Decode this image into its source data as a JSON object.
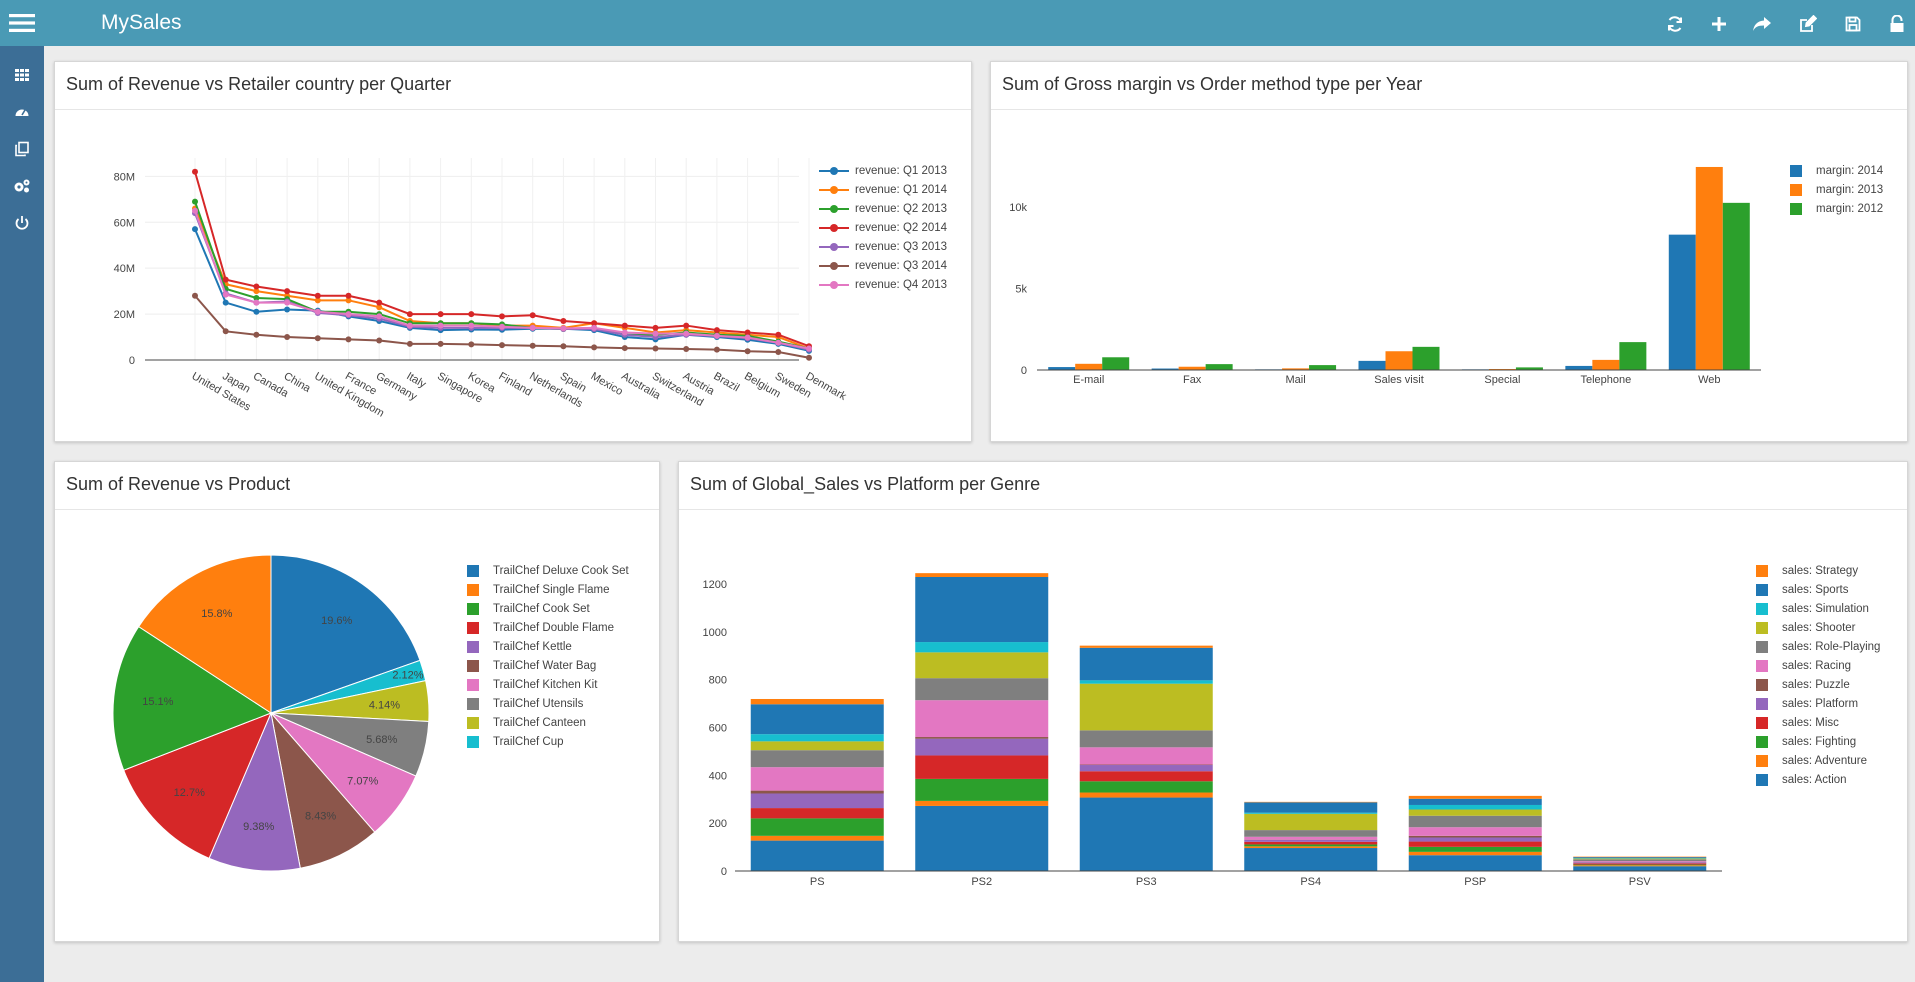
{
  "app": {
    "title": "MySales"
  },
  "toolbar": [
    {
      "icon": "refresh-icon"
    },
    {
      "icon": "plus-icon"
    },
    {
      "icon": "share-icon"
    },
    {
      "icon": "edit-icon"
    },
    {
      "icon": "save-icon"
    },
    {
      "icon": "unlock-icon"
    }
  ],
  "sidebar": [
    {
      "icon": "grid-icon"
    },
    {
      "icon": "dashboard-icon"
    },
    {
      "icon": "copy-icon"
    },
    {
      "icon": "settings-icon"
    },
    {
      "icon": "power-icon"
    }
  ],
  "colors": {
    "blue": "#1f77b4",
    "orange": "#ff7f0e",
    "green": "#2ca02c",
    "red": "#d62728",
    "purple": "#9467bd",
    "brown": "#8c564b",
    "pink": "#e377c2",
    "gray": "#7f7f7f",
    "olive": "#bcbd22",
    "cyan": "#17becf",
    "topbar": "#4a9ab5",
    "sidebar": "#3c6e96"
  },
  "panels": {
    "revenue_country": {
      "title": "Sum of Revenue vs Retailer country per Quarter"
    },
    "gross_margin": {
      "title": "Sum of Gross margin vs Order method type per Year"
    },
    "revenue_product": {
      "title": "Sum of Revenue vs Product"
    },
    "global_sales": {
      "title": "Sum of Global_Sales vs Platform per Genre"
    }
  },
  "chart_data": [
    {
      "id": "revenue_country",
      "type": "line",
      "x": [
        "United States",
        "Japan",
        "Canada",
        "China",
        "United Kingdom",
        "France",
        "Germany",
        "Italy",
        "Singapore",
        "Korea",
        "Finland",
        "Netherlands",
        "Spain",
        "Mexico",
        "Australia",
        "Switzerland",
        "Austria",
        "Brazil",
        "Belgium",
        "Sweden",
        "Denmark"
      ],
      "y_ticks": [
        {
          "v": 0,
          "label": "0"
        },
        {
          "v": 20,
          "label": "20M"
        },
        {
          "v": 40,
          "label": "40M"
        },
        {
          "v": 60,
          "label": "60M"
        },
        {
          "v": 80,
          "label": "80M"
        }
      ],
      "ylim": [
        0,
        88
      ],
      "grid": true,
      "legend": "right",
      "series": [
        {
          "name": "revenue: Q1 2013",
          "color": "#1f77b4",
          "values": [
            57,
            25,
            21,
            22,
            21.5,
            19,
            17,
            14,
            13,
            13.3,
            13.2,
            13.6,
            13.6,
            13,
            10,
            9,
            11,
            10,
            8.8,
            7,
            4
          ]
        },
        {
          "name": "revenue: Q1 2014",
          "color": "#ff7f0e",
          "values": [
            66,
            33,
            30,
            28,
            26,
            26,
            23,
            17,
            16,
            16,
            15,
            15,
            14,
            16,
            14,
            12,
            13,
            12,
            11,
            10,
            5
          ]
        },
        {
          "name": "revenue: Q2 2013",
          "color": "#2ca02c",
          "values": [
            69,
            31,
            27,
            26.5,
            21,
            21,
            20,
            16,
            16,
            16,
            15.5,
            14,
            13.5,
            14,
            11,
            11,
            12,
            11,
            10.5,
            8,
            5
          ]
        },
        {
          "name": "revenue: Q2 2014",
          "color": "#d62728",
          "values": [
            82,
            35,
            32,
            30,
            28,
            28,
            25,
            20,
            20,
            20,
            19,
            19.5,
            17,
            16,
            15,
            14,
            15,
            13,
            12,
            11,
            6
          ]
        },
        {
          "name": "revenue: Q3 2013",
          "color": "#9467bd",
          "values": [
            64,
            29,
            25,
            25.5,
            20.5,
            19.5,
            18,
            14.5,
            14,
            14,
            14,
            14,
            13.5,
            13.5,
            11,
            10,
            11,
            10.5,
            9.5,
            7.5,
            4.5
          ]
        },
        {
          "name": "revenue: Q3 2014",
          "color": "#8c564b",
          "values": [
            28,
            12.5,
            11,
            10,
            9.5,
            9,
            8.5,
            7,
            7,
            6.8,
            6.5,
            6.2,
            6,
            5.5,
            5.2,
            5,
            4.8,
            4.5,
            3.8,
            3.5,
            1
          ]
        },
        {
          "name": "revenue: Q4 2013",
          "color": "#e377c2",
          "values": [
            65,
            28.5,
            25,
            25,
            21,
            20,
            19,
            15,
            15,
            15,
            14.5,
            14,
            13.8,
            14,
            12,
            11.5,
            11.5,
            10.5,
            9.8,
            7.5,
            5
          ]
        }
      ]
    },
    {
      "id": "gross_margin",
      "type": "bar",
      "categories": [
        "E-mail",
        "Fax",
        "Mail",
        "Sales visit",
        "Special",
        "Telephone",
        "Web"
      ],
      "y_ticks": [
        {
          "v": 0,
          "label": "0"
        },
        {
          "v": 5000,
          "label": "5k"
        },
        {
          "v": 10000,
          "label": "10k"
        }
      ],
      "ylim": [
        0,
        13000
      ],
      "legend": "right",
      "series": [
        {
          "name": "margin: 2014",
          "color": "#1f77b4",
          "values": [
            180,
            90,
            40,
            560,
            40,
            250,
            8300
          ]
        },
        {
          "name": "margin: 2013",
          "color": "#ff7f0e",
          "values": [
            380,
            200,
            100,
            1150,
            60,
            620,
            12450
          ]
        },
        {
          "name": "margin: 2012",
          "color": "#2ca02c",
          "values": [
            780,
            360,
            300,
            1420,
            160,
            1710,
            10250
          ]
        }
      ]
    },
    {
      "id": "revenue_product",
      "type": "pie",
      "legend": "right",
      "slices": [
        {
          "label": "TrailChef Deluxe Cook Set",
          "value": 19.6,
          "text": "19.6%",
          "color": "#1f77b4"
        },
        {
          "label": "TrailChef Cup",
          "value": 2.12,
          "text": "2.12%",
          "color": "#17becf"
        },
        {
          "label": "TrailChef Canteen",
          "value": 4.14,
          "text": "4.14%",
          "color": "#bcbd22"
        },
        {
          "label": "TrailChef Utensils",
          "value": 5.68,
          "text": "5.68%",
          "color": "#7f7f7f"
        },
        {
          "label": "TrailChef Kitchen Kit",
          "value": 7.07,
          "text": "7.07%",
          "color": "#e377c2"
        },
        {
          "label": "TrailChef Water Bag",
          "value": 8.43,
          "text": "8.43%",
          "color": "#8c564b"
        },
        {
          "label": "TrailChef Kettle",
          "value": 9.38,
          "text": "9.38%",
          "color": "#9467bd"
        },
        {
          "label": "TrailChef Double Flame",
          "value": 12.7,
          "text": "12.7%",
          "color": "#d62728"
        },
        {
          "label": "TrailChef Cook Set",
          "value": 15.1,
          "text": "15.1%",
          "color": "#2ca02c"
        },
        {
          "label": "TrailChef Single Flame",
          "value": 15.8,
          "text": "15.8%",
          "color": "#ff7f0e"
        }
      ],
      "legend_order": [
        "TrailChef Deluxe Cook Set",
        "TrailChef Single Flame",
        "TrailChef Cook Set",
        "TrailChef Double Flame",
        "TrailChef Kettle",
        "TrailChef Water Bag",
        "TrailChef Kitchen Kit",
        "TrailChef Utensils",
        "TrailChef Canteen",
        "TrailChef Cup"
      ]
    },
    {
      "id": "global_sales",
      "type": "bar",
      "stacked": true,
      "categories": [
        "PS",
        "PS2",
        "PS3",
        "PS4",
        "PSP",
        "PSV"
      ],
      "y_ticks": [
        {
          "v": 0,
          "label": "0"
        },
        {
          "v": 200,
          "label": "200"
        },
        {
          "v": 400,
          "label": "400"
        },
        {
          "v": 600,
          "label": "600"
        },
        {
          "v": 800,
          "label": "800"
        },
        {
          "v": 1000,
          "label": "1000"
        },
        {
          "v": 1200,
          "label": "1200"
        }
      ],
      "ylim": [
        0,
        1300
      ],
      "legend": "right",
      "series": [
        {
          "name": "sales: Action",
          "color": "#1f77b4",
          "values": [
            127,
            272,
            307,
            96,
            66,
            20
          ]
        },
        {
          "name": "sales: Adventure",
          "color": "#ff7f0e",
          "values": [
            20,
            21,
            21,
            7,
            14,
            4
          ]
        },
        {
          "name": "sales: Fighting",
          "color": "#2ca02c",
          "values": [
            73,
            92,
            47,
            8,
            21,
            3
          ]
        },
        {
          "name": "sales: Misc",
          "color": "#d62728",
          "values": [
            43,
            98,
            42,
            11,
            22,
            5
          ]
        },
        {
          "name": "sales: Platform",
          "color": "#9467bd",
          "values": [
            61,
            70,
            26,
            8,
            17,
            4
          ]
        },
        {
          "name": "sales: Puzzle",
          "color": "#8c564b",
          "values": [
            12,
            7,
            2,
            1,
            7,
            1
          ]
        },
        {
          "name": "sales: Racing",
          "color": "#e377c2",
          "values": [
            98,
            154,
            72,
            12,
            36,
            4
          ]
        },
        {
          "name": "sales: Role-Playing",
          "color": "#7f7f7f",
          "values": [
            71,
            92,
            71,
            28,
            48,
            8
          ]
        },
        {
          "name": "sales: Shooter",
          "color": "#bcbd22",
          "values": [
            37,
            108,
            195,
            68,
            26,
            3
          ]
        },
        {
          "name": "sales: Simulation",
          "color": "#17becf",
          "values": [
            30,
            43,
            14,
            5,
            19,
            2
          ]
        },
        {
          "name": "sales: Sports",
          "color": "#1f77b4",
          "values": [
            125,
            272,
            136,
            43,
            26,
            4
          ]
        },
        {
          "name": "sales: Strategy",
          "color": "#ff7f0e",
          "values": [
            22,
            16,
            9,
            2,
            12,
            2
          ]
        }
      ]
    }
  ]
}
